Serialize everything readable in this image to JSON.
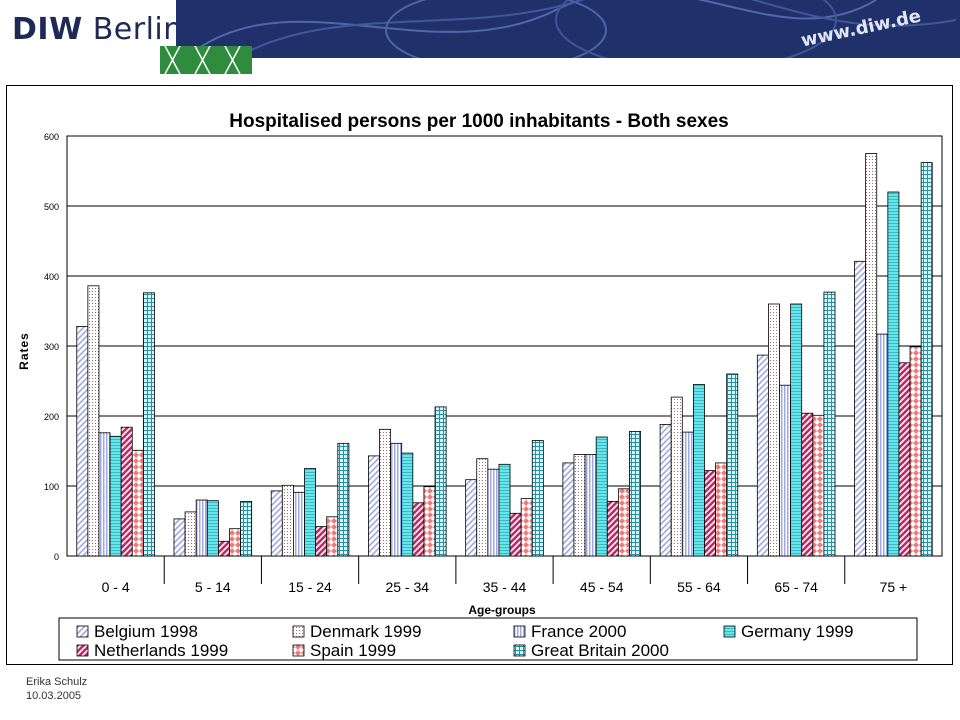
{
  "header": {
    "logo_bold": "DIW",
    "logo_light": "Berlin",
    "url": "www.diw.de"
  },
  "footer": {
    "author": "Erika Schulz",
    "date": "10.03.2005"
  },
  "chart_data": {
    "type": "bar",
    "title": "Hospitalised persons per 1000 inhabitants - Both sexes",
    "xlabel": "Age-groups",
    "ylabel": "Rates",
    "ylim": [
      0,
      600
    ],
    "yticks": [
      0,
      100,
      200,
      300,
      400,
      500,
      600
    ],
    "grid": true,
    "legend_position": "bottom",
    "categories": [
      "0 - 4",
      "5 - 14",
      "15 - 24",
      "25 - 34",
      "35 - 44",
      "45 - 54",
      "55 - 64",
      "65 - 74",
      "75 +"
    ],
    "series": [
      {
        "name": "Belgium 1998",
        "color": "#9fa8e6",
        "pattern": "diag",
        "values": [
          328,
          53,
          93,
          143,
          109,
          133,
          188,
          287,
          421
        ]
      },
      {
        "name": "Denmark 1999",
        "color": "#f2c8c8",
        "pattern": "dots",
        "values": [
          386,
          63,
          101,
          181,
          139,
          145,
          227,
          360,
          575
        ]
      },
      {
        "name": "France 2000",
        "color": "#9fa8e6",
        "pattern": "vlines",
        "values": [
          176,
          80,
          91,
          161,
          124,
          145,
          177,
          244,
          317
        ]
      },
      {
        "name": "Germany 1999",
        "color": "#66e6ec",
        "pattern": "hlines",
        "values": [
          171,
          79,
          125,
          147,
          131,
          170,
          245,
          360,
          520
        ]
      },
      {
        "name": "Netherlands 1999",
        "color": "#c02a68",
        "pattern": "bdiag",
        "values": [
          184,
          21,
          42,
          76,
          61,
          78,
          122,
          204,
          276
        ]
      },
      {
        "name": "Spain 1999",
        "color": "#f07a7a",
        "pattern": "diamond",
        "values": [
          151,
          39,
          56,
          99,
          82,
          96,
          133,
          201,
          299
        ]
      },
      {
        "name": "Great Britain 2000",
        "color": "#4ab8c8",
        "pattern": "grid",
        "values": [
          376,
          78,
          161,
          213,
          165,
          178,
          260,
          377,
          562
        ]
      }
    ]
  }
}
